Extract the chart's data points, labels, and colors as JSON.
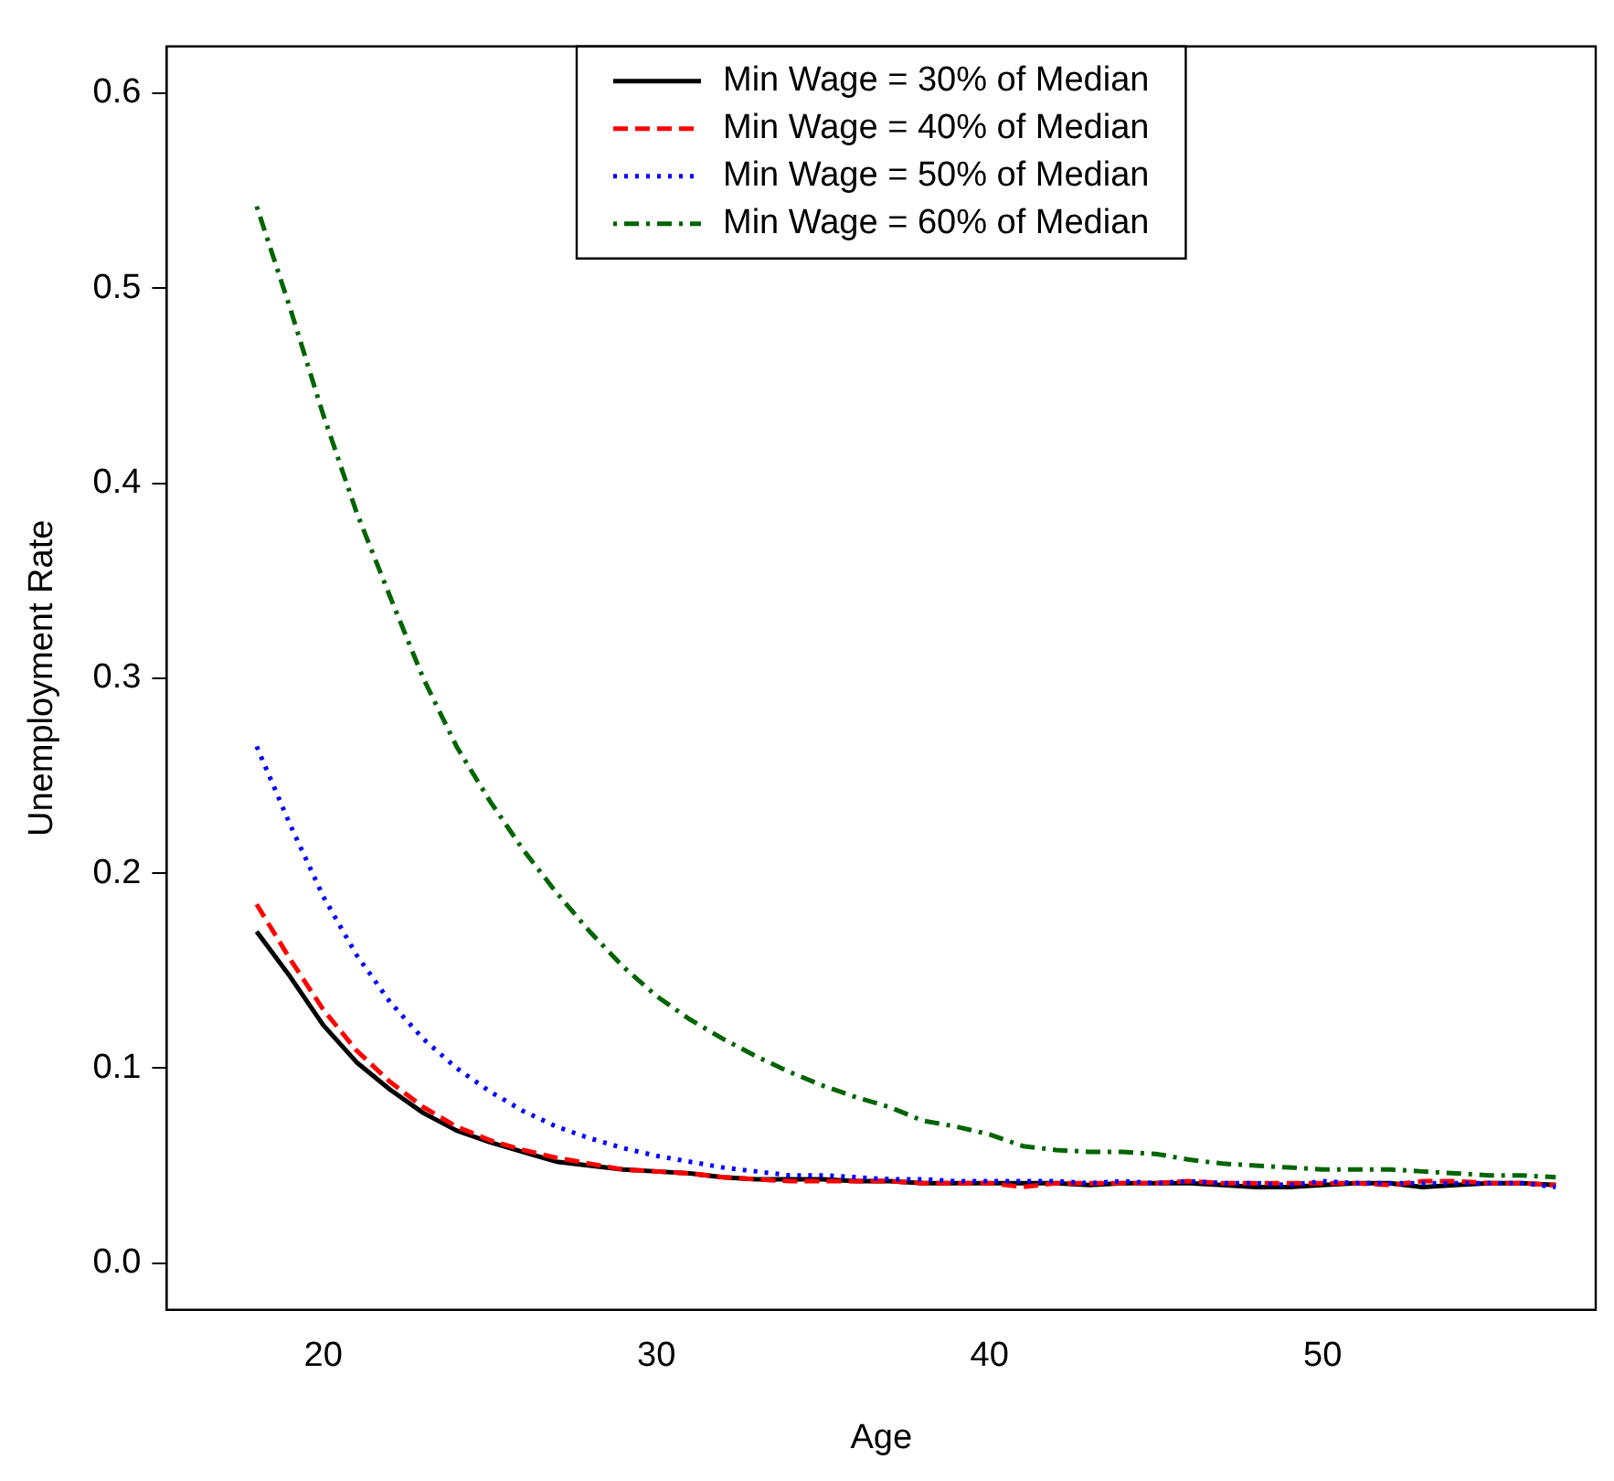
{
  "chart_data": {
    "type": "line",
    "xlabel": "Age",
    "ylabel": "Unemployment Rate",
    "x": [
      18,
      19,
      20,
      21,
      22,
      23,
      24,
      25,
      26,
      27,
      28,
      29,
      30,
      31,
      32,
      33,
      34,
      35,
      36,
      37,
      38,
      39,
      40,
      41,
      42,
      43,
      44,
      45,
      46,
      47,
      48,
      49,
      50,
      51,
      52,
      53,
      54,
      55,
      56,
      57
    ],
    "series": [
      {
        "name": "Min Wage = 30% of Median",
        "color": "#000000",
        "line_style": "solid",
        "values": [
          0.17,
          0.147,
          0.122,
          0.103,
          0.089,
          0.077,
          0.068,
          0.062,
          0.057,
          0.052,
          0.05,
          0.048,
          0.047,
          0.046,
          0.044,
          0.043,
          0.043,
          0.043,
          0.042,
          0.042,
          0.041,
          0.041,
          0.041,
          0.041,
          0.041,
          0.04,
          0.041,
          0.041,
          0.041,
          0.04,
          0.039,
          0.039,
          0.04,
          0.041,
          0.041,
          0.039,
          0.04,
          0.041,
          0.041,
          0.04
        ]
      },
      {
        "name": "Min Wage = 40% of Median",
        "color": "#ff0000",
        "line_style": "dashed",
        "values": [
          0.184,
          0.156,
          0.13,
          0.109,
          0.093,
          0.08,
          0.07,
          0.063,
          0.058,
          0.054,
          0.051,
          0.048,
          0.047,
          0.046,
          0.044,
          0.043,
          0.042,
          0.042,
          0.042,
          0.042,
          0.041,
          0.041,
          0.041,
          0.039,
          0.041,
          0.041,
          0.041,
          0.041,
          0.042,
          0.041,
          0.041,
          0.041,
          0.041,
          0.041,
          0.04,
          0.042,
          0.042,
          0.041,
          0.041,
          0.04
        ]
      },
      {
        "name": "Min Wage = 50% of Median",
        "color": "#0000ff",
        "line_style": "dotted",
        "values": [
          0.265,
          0.225,
          0.188,
          0.158,
          0.134,
          0.115,
          0.1,
          0.088,
          0.078,
          0.07,
          0.064,
          0.059,
          0.055,
          0.052,
          0.049,
          0.047,
          0.045,
          0.045,
          0.044,
          0.043,
          0.043,
          0.042,
          0.042,
          0.042,
          0.042,
          0.041,
          0.042,
          0.041,
          0.042,
          0.041,
          0.041,
          0.04,
          0.042,
          0.041,
          0.041,
          0.041,
          0.041,
          0.041,
          0.041,
          0.039
        ]
      },
      {
        "name": "Min Wage = 60% of Median",
        "color": "#006400",
        "line_style": "dashdot",
        "values": [
          0.542,
          0.49,
          0.435,
          0.385,
          0.342,
          0.3,
          0.265,
          0.237,
          0.212,
          0.19,
          0.17,
          0.152,
          0.137,
          0.125,
          0.115,
          0.106,
          0.098,
          0.091,
          0.085,
          0.08,
          0.073,
          0.07,
          0.066,
          0.06,
          0.058,
          0.057,
          0.057,
          0.056,
          0.053,
          0.051,
          0.05,
          0.049,
          0.048,
          0.048,
          0.048,
          0.047,
          0.046,
          0.045,
          0.045,
          0.044
        ]
      }
    ],
    "xlim": [
      15.3,
      58.2
    ],
    "xticks": [
      20,
      30,
      40,
      50
    ],
    "ylim": [
      -0.024,
      0.624
    ],
    "yticks": [
      {
        "value": 0,
        "label": "0.0"
      },
      0.1,
      0.2,
      0.3,
      0.4,
      0.5,
      0.6
    ],
    "grid": false,
    "legend": "top",
    "marker": "none"
  }
}
